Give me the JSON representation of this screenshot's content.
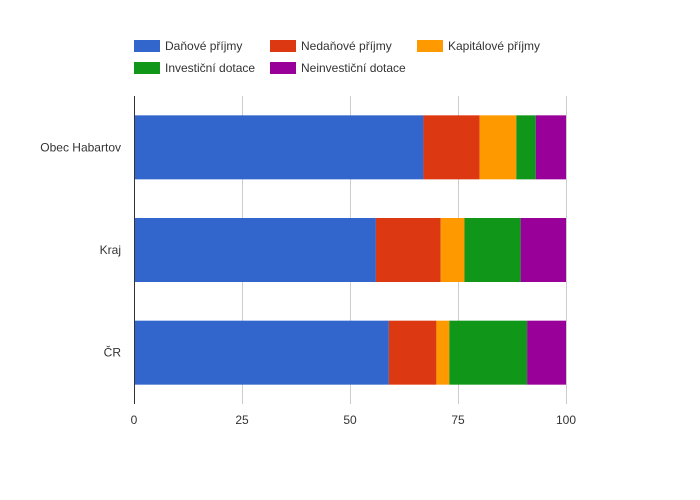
{
  "chart_data": {
    "type": "bar",
    "orientation": "horizontal",
    "stacked": true,
    "title": "",
    "xlabel": "",
    "ylabel": "",
    "xlim": [
      0,
      100
    ],
    "x_ticks": [
      0,
      25,
      50,
      75,
      100
    ],
    "grid": true,
    "legend_position": "top",
    "categories": [
      "Obec Habartov",
      "Kraj",
      "ČR"
    ],
    "series": [
      {
        "name": "Daňové příjmy",
        "color": "#3366cc",
        "values": [
          67,
          56,
          59
        ]
      },
      {
        "name": "Nedaňové příjmy",
        "color": "#dc3912",
        "values": [
          13,
          15,
          11
        ]
      },
      {
        "name": "Kapitálové příjmy",
        "color": "#ff9900",
        "values": [
          8.5,
          5.5,
          3
        ]
      },
      {
        "name": "Investiční dotace",
        "color": "#109618",
        "values": [
          4.5,
          13,
          18
        ]
      },
      {
        "name": "Neinvestiční dotace",
        "color": "#990099",
        "values": [
          7,
          10.5,
          9
        ]
      }
    ]
  }
}
